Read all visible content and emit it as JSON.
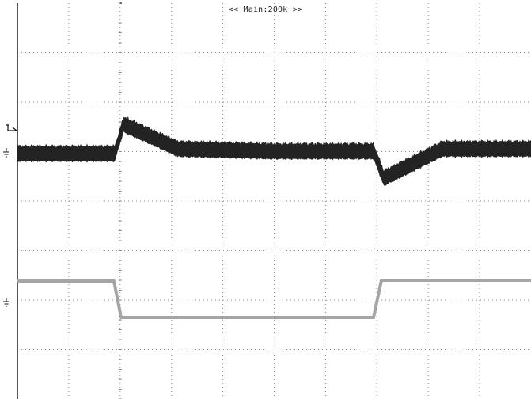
{
  "scope": {
    "timebase_label": "<< Main:200k >>",
    "colors": {
      "background": "#ffffff",
      "grid": "#8a8a8a",
      "border": "#111111",
      "channel1": "#1f1f1f",
      "channel2": "#a5a5a5"
    },
    "markers": {
      "trigger_icon": "trigger-level-icon",
      "ch1_ground_icon": "ground-symbol-icon",
      "ch2_ground_icon": "ground-symbol-icon"
    }
  }
}
